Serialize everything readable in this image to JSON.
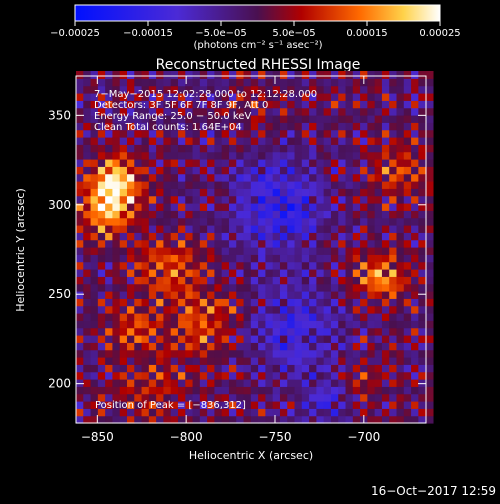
{
  "chart_data": {
    "type": "heatmap",
    "title": "Reconstructed RHESSI Image",
    "xlabel": "Heliocentric X (arcsec)",
    "ylabel": "Heliocentric Y (arcsec)",
    "xlim": [
      -862,
      -665
    ],
    "ylim": [
      178,
      372
    ],
    "x_ticks": [
      -850,
      -800,
      -750,
      -700
    ],
    "y_ticks": [
      200,
      250,
      300,
      350
    ],
    "x_tick_labels": [
      "−850",
      "−800",
      "−750",
      "−700"
    ],
    "y_tick_labels": [
      "200",
      "250",
      "300",
      "350"
    ],
    "colorbar": {
      "range": [
        -0.00025,
        0.00025
      ],
      "ticks": [
        -0.00025,
        -0.00015,
        -5e-05,
        5e-05,
        0.00015,
        0.00025
      ],
      "tick_labels": [
        "−0.00025",
        "−0.00015",
        "−5.0e−05",
        "5.0e−05",
        "0.00015",
        "0.00025"
      ],
      "units_label": "(photons cm⁻² s⁻¹ asec⁻²)"
    },
    "annotations": [
      "7−May−2015 12:02:28.000 to 12:12:28.000",
      "Detectors: 3F 5F 6F 7F 8F 9F, Att 0",
      "Energy Range: 25.0 − 50.0 keV",
      "Clean    Total counts: 1.64E+04"
    ],
    "peak_label": "Position of Peak = [−836,312]",
    "peak_position": [
      -836,
      312
    ],
    "sources": [
      {
        "x": -840,
        "y": 312,
        "sigma": 11,
        "amp": 1.0
      },
      {
        "x": -845,
        "y": 295,
        "sigma": 9,
        "amp": 0.75
      },
      {
        "x": -810,
        "y": 265,
        "sigma": 12,
        "amp": 0.55
      },
      {
        "x": -790,
        "y": 235,
        "sigma": 13,
        "amp": 0.6
      },
      {
        "x": -830,
        "y": 230,
        "sigma": 10,
        "amp": 0.5
      },
      {
        "x": -690,
        "y": 260,
        "sigma": 10,
        "amp": 0.75
      },
      {
        "x": -680,
        "y": 320,
        "sigma": 12,
        "amp": 0.45
      },
      {
        "x": -820,
        "y": 195,
        "sigma": 14,
        "amp": 0.35
      },
      {
        "x": -760,
        "y": 355,
        "sigma": 12,
        "amp": 0.2
      },
      {
        "x": -700,
        "y": 200,
        "sigma": 10,
        "amp": 0.3
      }
    ],
    "cool_regions": [
      {
        "x": -748,
        "y": 300,
        "sigma": 18,
        "amp": -0.7
      },
      {
        "x": -740,
        "y": 230,
        "sigma": 18,
        "amp": -0.55
      },
      {
        "x": -720,
        "y": 190,
        "sigma": 10,
        "amp": -0.5
      }
    ]
  },
  "footer_timestamp": "16−Oct−2017 12:59"
}
